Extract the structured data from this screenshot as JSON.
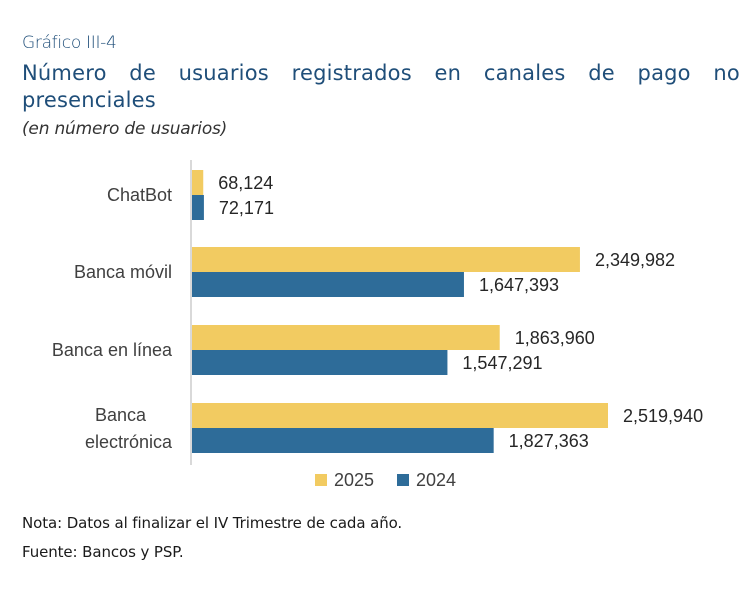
{
  "header": {
    "figure_number": "Gráfico III-4",
    "title_line1_words": [
      "Número",
      "de",
      "usuarios",
      "registrados",
      "en",
      "canales",
      "de",
      "pago",
      "no"
    ],
    "title_line2": "presenciales",
    "subtitle": "(en número de usuarios)"
  },
  "footer": {
    "note": "Nota: Datos al finalizar el IV Trimestre de cada año.",
    "source": "Fuente: Bancos y PSP."
  },
  "colors": {
    "series_2025": "#f2cb61",
    "series_2024": "#2e6c99",
    "axis": "#d9d9d9",
    "title": "#1f4e79"
  },
  "chart_data": {
    "type": "bar",
    "orientation": "horizontal",
    "title": "Número de usuarios registrados en canales de pago no presenciales",
    "subtitle": "(en número de usuarios)",
    "xlabel": "",
    "ylabel": "",
    "categories": [
      "ChatBot",
      "Banca móvil",
      "Banca en línea",
      "Banca electrónica"
    ],
    "category_lines": [
      [
        "ChatBot"
      ],
      [
        "Banca móvil"
      ],
      [
        "Banca en línea"
      ],
      [
        "Banca",
        "electrónica"
      ]
    ],
    "series": [
      {
        "name": "2025",
        "color": "#f2cb61",
        "values": [
          68124,
          2349982,
          1863960,
          2519940
        ],
        "labels": [
          "68,124",
          "2,349,982",
          "1,863,960",
          "2,519,940"
        ]
      },
      {
        "name": "2024",
        "color": "#2e6c99",
        "values": [
          72171,
          1647393,
          1547291,
          1827363
        ],
        "labels": [
          "72,171",
          "1,647,393",
          "1,547,291",
          "1,827,363"
        ]
      }
    ],
    "xlim": [
      0,
      2519940
    ],
    "grid": false,
    "data_labels": true,
    "legend": {
      "position": "bottom",
      "entries": [
        "2025",
        "2024"
      ]
    }
  }
}
